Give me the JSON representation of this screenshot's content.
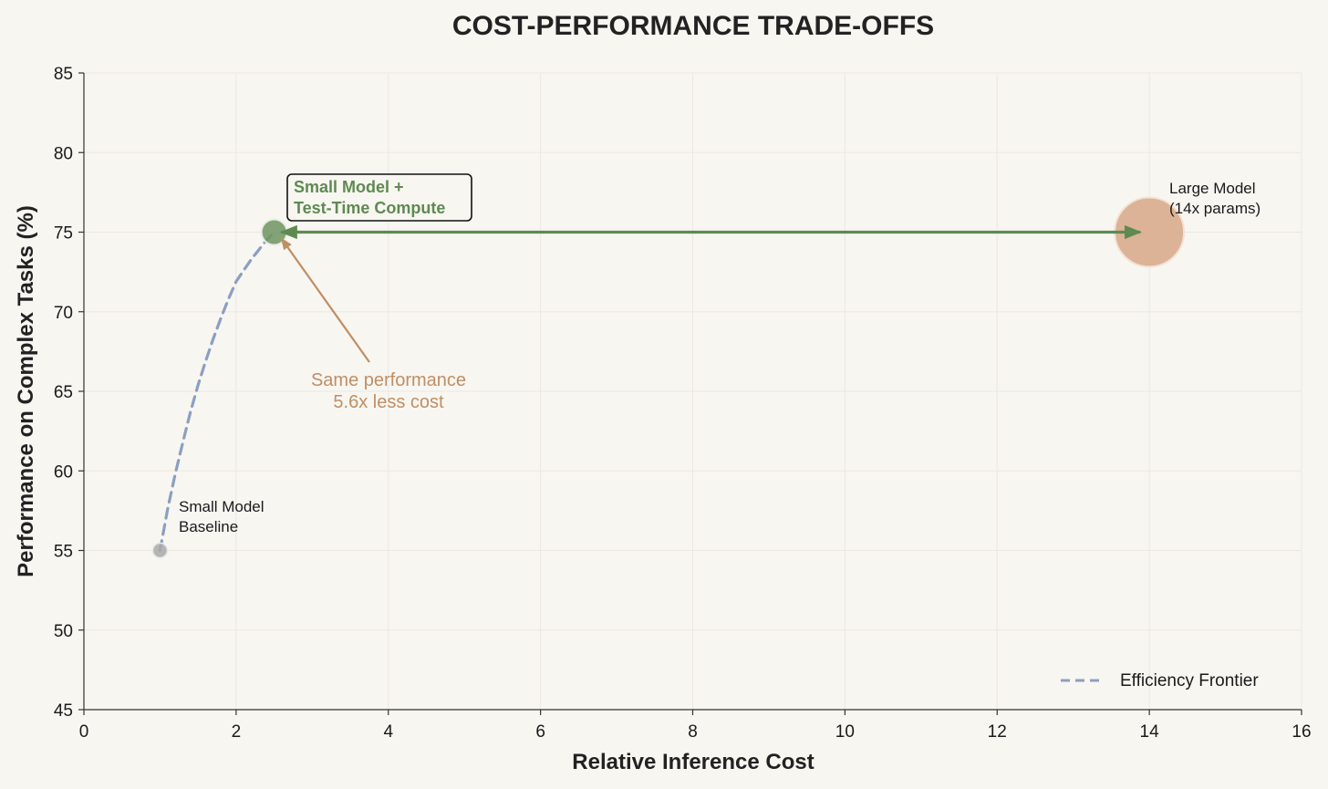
{
  "chart_data": {
    "type": "scatter",
    "title": "COST-PERFORMANCE TRADE-OFFS",
    "xlabel": "Relative Inference Cost",
    "ylabel": "Performance on Complex Tasks (%)",
    "xlim": [
      0,
      16
    ],
    "ylim": [
      45,
      85
    ],
    "xticks": [
      0,
      2,
      4,
      6,
      8,
      10,
      12,
      14,
      16
    ],
    "yticks": [
      45,
      50,
      55,
      60,
      65,
      70,
      75,
      80,
      85
    ],
    "grid": true,
    "legend": {
      "placement": "lower-right",
      "entries": [
        "Efficiency Frontier"
      ]
    },
    "points": [
      {
        "label": "Small Model Baseline",
        "lines": [
          "Small Model",
          "Baseline"
        ],
        "x": 1,
        "y": 55,
        "color": "#a9a9a9"
      },
      {
        "label": "Small Model + Test-Time Compute",
        "lines": [
          "Small Model +",
          "Test-Time Compute"
        ],
        "x": 2.5,
        "y": 75,
        "color": "#6e9460"
      },
      {
        "label": "Large Model (14x params)",
        "lines": [
          "Large Model",
          "(14x params)"
        ],
        "x": 14,
        "y": 75,
        "color": "#d4a27f"
      }
    ],
    "series": [
      {
        "name": "Efficiency Frontier",
        "style": "dashed",
        "color": "#8aa0c0",
        "x": [
          1.0,
          1.1,
          1.2,
          1.3,
          1.4,
          1.5,
          1.6,
          1.7,
          1.8,
          1.9,
          2.0,
          2.1,
          2.2,
          2.3,
          2.4,
          2.5
        ],
        "y": [
          55.0,
          57.6,
          59.8,
          61.8,
          63.7,
          65.4,
          66.9,
          68.3,
          69.6,
          70.8,
          71.9,
          72.6,
          73.3,
          73.9,
          74.5,
          75.0
        ]
      }
    ],
    "annotations": {
      "comparison": {
        "lines": [
          "Same performance",
          "5.6x less cost"
        ],
        "color": "#c08e64"
      }
    }
  }
}
